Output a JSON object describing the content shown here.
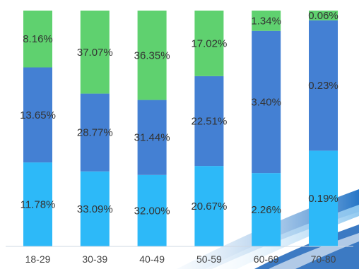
{
  "chart_data": {
    "type": "bar",
    "stacked": true,
    "categories": [
      "18-29",
      "30-39",
      "40-49",
      "50-59",
      "60-69",
      "70-80"
    ],
    "series": [
      {
        "labels": [
          "11.78%",
          "33.09%",
          "32.00%",
          "20.67%",
          "2.26%",
          "0.19%"
        ],
        "color": "#2db9f8"
      },
      {
        "labels": [
          "13.65%",
          "28.77%",
          "31.44%",
          "22.51%",
          "3.40%",
          "0.23%"
        ],
        "color": "#4480d3"
      },
      {
        "labels": [
          "8.16%",
          "37.07%",
          "36.35%",
          "17.02%",
          "1.34%",
          "0.06%"
        ],
        "color": "#5fd16f"
      }
    ],
    "segment_shares": [
      [
        0.356,
        0.403,
        0.241
      ],
      [
        0.318,
        0.33,
        0.352
      ],
      [
        0.303,
        0.318,
        0.379
      ],
      [
        0.341,
        0.381,
        0.278
      ],
      [
        0.311,
        0.603,
        0.086
      ],
      [
        0.406,
        0.553,
        0.041
      ]
    ],
    "grid": false,
    "legend": "none"
  }
}
